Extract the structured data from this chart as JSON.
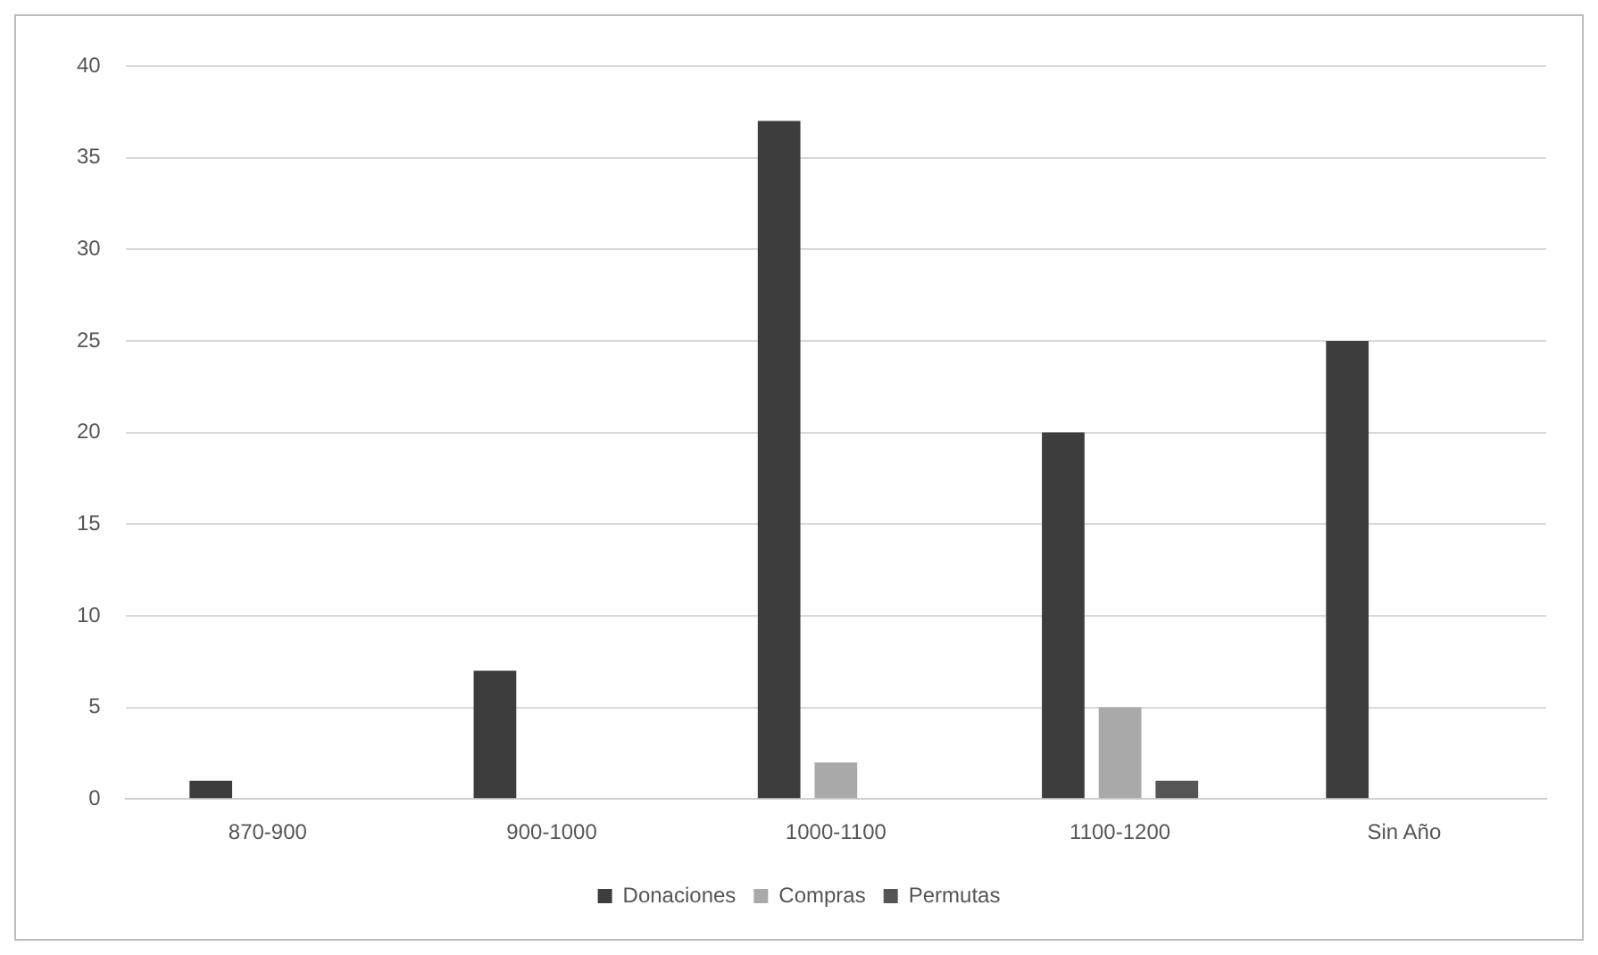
{
  "chart_data": {
    "type": "bar",
    "categories": [
      "870-900",
      "900-1000",
      "1000-1100",
      "1100-1200",
      "Sin Año"
    ],
    "series": [
      {
        "name": "Donaciones",
        "color": "#3d3d3d",
        "values": [
          1,
          7,
          37,
          20,
          25
        ]
      },
      {
        "name": "Compras",
        "color": "#a9a9a9",
        "values": [
          0,
          0,
          2,
          5,
          0
        ]
      },
      {
        "name": "Permutas",
        "color": "#555555",
        "values": [
          0,
          0,
          0,
          1,
          0
        ]
      }
    ],
    "ylim": [
      0,
      40
    ],
    "yticks": [
      0,
      5,
      10,
      15,
      20,
      25,
      30,
      35,
      40
    ],
    "grid": "y",
    "legend": "bottom"
  }
}
